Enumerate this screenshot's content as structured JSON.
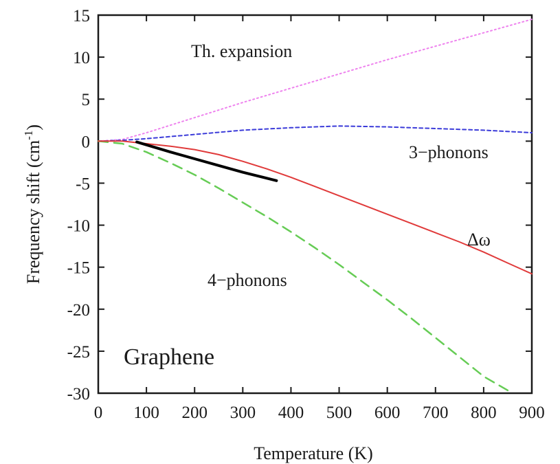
{
  "chart_data": {
    "type": "line",
    "xlabel": "Temperature (K)",
    "ylabel": "Frequency shift (cm",
    "ylabel_sup": "-1",
    "ylabel_close": ")",
    "xlim": [
      0,
      900
    ],
    "ylim": [
      -30,
      15
    ],
    "x_ticks": [
      0,
      100,
      200,
      300,
      400,
      500,
      600,
      700,
      800,
      900
    ],
    "y_ticks": [
      15,
      10,
      5,
      0,
      -5,
      -10,
      -15,
      -20,
      -25,
      -30
    ],
    "x_tick_labels": [
      "0",
      "100",
      "200",
      "300",
      "400",
      "500",
      "600",
      "700",
      "800",
      "900"
    ],
    "y_tick_labels": [
      "15",
      "10",
      "5",
      "0",
      "-5",
      "-10",
      "-15",
      "-20",
      "-25",
      "-30"
    ],
    "grid": false,
    "annotations": {
      "th_expansion": "Th. expansion",
      "three_phonons": "3−phonons",
      "four_phonons": "4−phonons",
      "delta_omega": "Δω",
      "material": "Graphene"
    },
    "series": [
      {
        "key": "th_expansion",
        "color": "#ee82ee",
        "style": "dotted",
        "x": [
          0,
          50,
          100,
          150,
          200,
          300,
          400,
          500,
          600,
          700,
          800,
          900
        ],
        "y": [
          0,
          0.2,
          1.0,
          1.9,
          2.8,
          4.6,
          6.3,
          8.0,
          9.7,
          11.3,
          12.9,
          14.5
        ]
      },
      {
        "key": "three_phonons",
        "color": "#3b3bd9",
        "style": "dashed-fine",
        "x": [
          0,
          50,
          100,
          200,
          300,
          400,
          500,
          600,
          700,
          800,
          900
        ],
        "y": [
          0,
          0.1,
          0.3,
          0.8,
          1.3,
          1.6,
          1.8,
          1.7,
          1.5,
          1.3,
          1.0
        ]
      },
      {
        "key": "four_phonons",
        "color": "#66cc55",
        "style": "dashed",
        "x": [
          0,
          50,
          100,
          150,
          200,
          250,
          300,
          350,
          400,
          450,
          500,
          550,
          600,
          650,
          700,
          750,
          800,
          860
        ],
        "y": [
          0,
          -0.3,
          -1.3,
          -2.6,
          -4.0,
          -5.6,
          -7.3,
          -9.0,
          -10.8,
          -12.7,
          -14.7,
          -16.8,
          -18.9,
          -21.1,
          -23.4,
          -25.7,
          -28.0,
          -30.0
        ]
      },
      {
        "key": "delta_omega",
        "color": "#e03a3a",
        "style": "solid",
        "x": [
          0,
          50,
          100,
          150,
          200,
          250,
          300,
          350,
          400,
          450,
          500,
          550,
          600,
          650,
          700,
          750,
          800,
          850,
          900
        ],
        "y": [
          0,
          0,
          -0.3,
          -0.6,
          -1.0,
          -1.6,
          -2.4,
          -3.3,
          -4.3,
          -5.4,
          -6.5,
          -7.6,
          -8.7,
          -9.8,
          -10.9,
          -12.0,
          -13.2,
          -14.5,
          -15.8
        ]
      },
      {
        "key": "experiment",
        "color": "#000000",
        "style": "solid-thick",
        "x": [
          80,
          150,
          200,
          250,
          300,
          370
        ],
        "y": [
          -0.1,
          -1.3,
          -2.1,
          -2.9,
          -3.7,
          -4.7
        ]
      }
    ]
  }
}
